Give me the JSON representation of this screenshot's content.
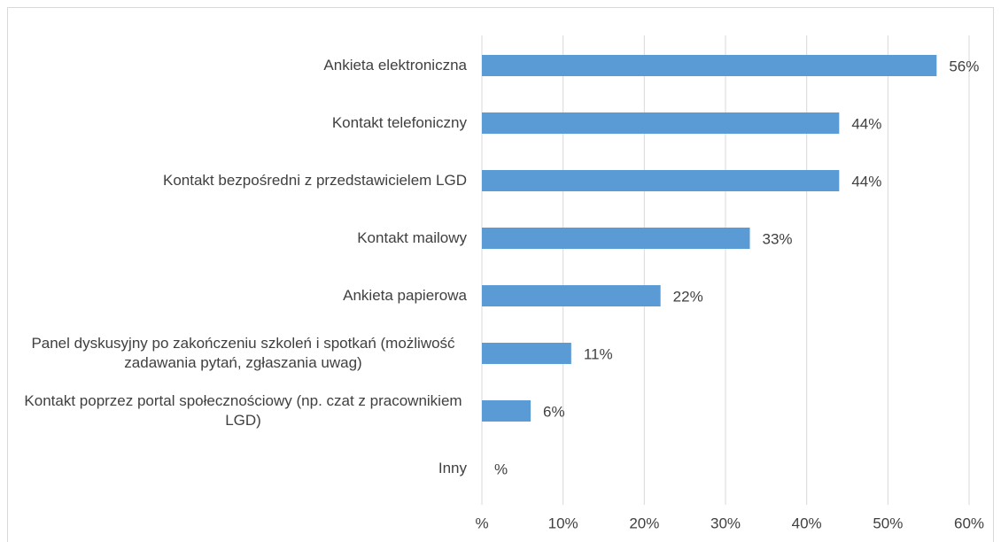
{
  "chart_data": {
    "type": "barh",
    "categories": [
      "Ankieta elektroniczna",
      "Kontakt telefoniczny",
      "Kontakt bezpośredni z przedstawicielem LGD",
      "Kontakt mailowy",
      "Ankieta papierowa",
      "Panel dyskusyjny po zakończeniu szkoleń i spotkań (możliwość zadawania pytań, zgłaszania uwag)",
      "Kontakt poprzez portal społecznościowy (np. czat z pracownikiem LGD)",
      "Inny"
    ],
    "values": [
      56,
      44,
      44,
      33,
      22,
      11,
      6,
      0
    ],
    "value_labels": [
      "56%",
      "44%",
      "44%",
      "33%",
      "22%",
      "11%",
      "6%",
      "%"
    ],
    "color": "#5b9bd5",
    "xlim": [
      0,
      60
    ],
    "xticks": [
      {
        "value": 0,
        "label": "%"
      },
      {
        "value": 10,
        "label": "10%"
      },
      {
        "value": 20,
        "label": "20%"
      },
      {
        "value": 30,
        "label": "30%"
      },
      {
        "value": 40,
        "label": "40%"
      },
      {
        "value": 50,
        "label": "50%"
      },
      {
        "value": 60,
        "label": "60%"
      }
    ],
    "grid": true
  }
}
